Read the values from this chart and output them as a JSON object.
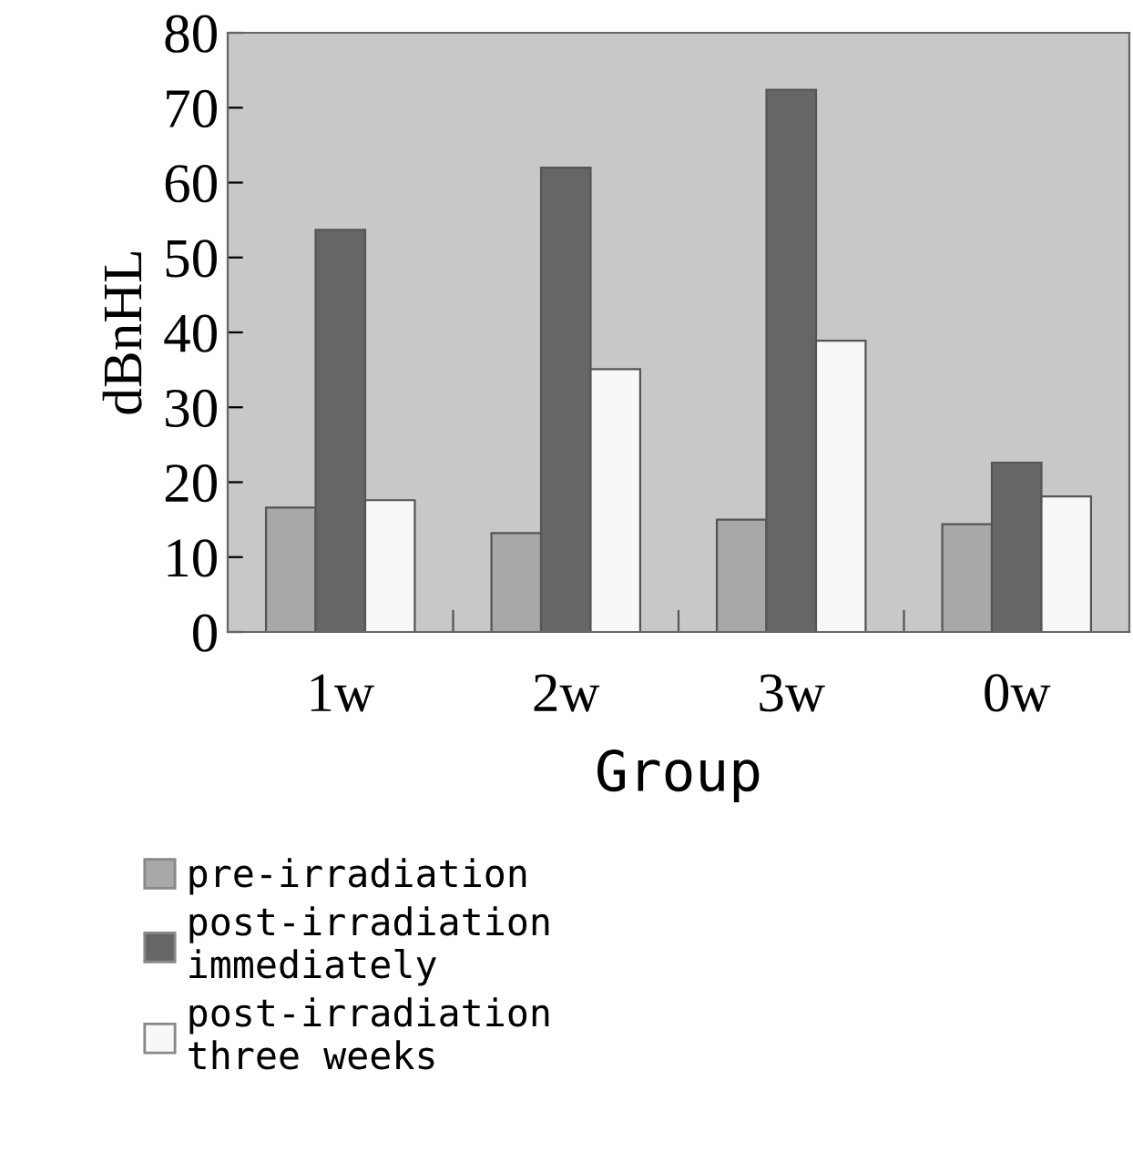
{
  "chart_data": {
    "type": "bar",
    "xlabel": "Group",
    "ylabel": "dBnHL",
    "categories": [
      "1w",
      "2w",
      "3w",
      "0w"
    ],
    "series": [
      {
        "name": "pre-irradiation",
        "color": "#a8a8a8",
        "values": [
          16.6,
          13.2,
          15.0,
          14.4
        ]
      },
      {
        "name": "post-irradiation\nimmediately",
        "color": "#666666",
        "values": [
          53.7,
          62.0,
          72.4,
          22.6
        ]
      },
      {
        "name": "post-irradiation\nthree weeks",
        "color": "#f8f8f8",
        "values": [
          17.6,
          35.1,
          38.9,
          18.1
        ]
      }
    ],
    "ylim": [
      0,
      80
    ],
    "yticks": [
      0,
      10,
      20,
      30,
      40,
      50,
      60,
      70,
      80
    ],
    "grid": false,
    "legend": "bottom"
  }
}
